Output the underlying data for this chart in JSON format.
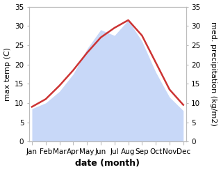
{
  "months": [
    "Jan",
    "Feb",
    "Mar",
    "Apr",
    "May",
    "Jun",
    "Jul",
    "Aug",
    "Sep",
    "Oct",
    "Nov",
    "Dec"
  ],
  "temp": [
    9.0,
    11.0,
    14.5,
    18.5,
    23.0,
    27.0,
    29.5,
    31.5,
    27.5,
    20.5,
    13.5,
    9.5
  ],
  "precip": [
    8.5,
    10.0,
    13.0,
    17.5,
    24.0,
    29.0,
    27.5,
    31.5,
    26.0,
    18.0,
    11.5,
    8.0
  ],
  "temp_color": "#cc3333",
  "precip_fill_color": "#c8d8f8",
  "precip_edge_color": "#c8d8f8",
  "background_color": "#ffffff",
  "ylim": [
    0,
    35
  ],
  "ylabel_left": "max temp (C)",
  "ylabel_right": "med. precipitation (kg/m2)",
  "xlabel": "date (month)",
  "tick_fontsize": 7.5,
  "label_fontsize": 8,
  "xlabel_fontsize": 9,
  "temp_linewidth": 1.8
}
